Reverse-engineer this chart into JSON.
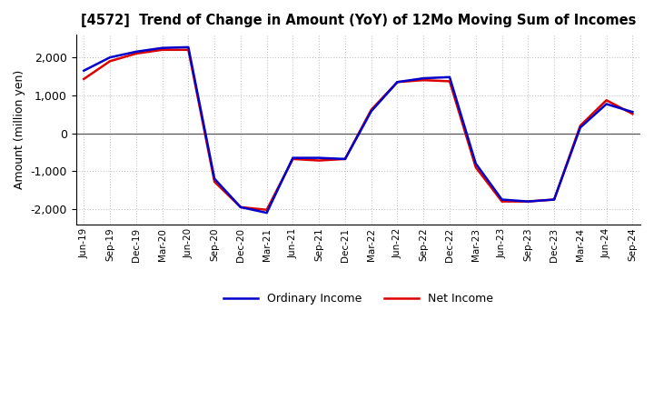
{
  "title": "[4572]  Trend of Change in Amount (YoY) of 12Mo Moving Sum of Incomes",
  "ylabel": "Amount (million yen)",
  "background_color": "#ffffff",
  "grid_color": "#bbbbbb",
  "x_labels": [
    "Jun-19",
    "Sep-19",
    "Dec-19",
    "Mar-20",
    "Jun-20",
    "Sep-20",
    "Dec-20",
    "Mar-21",
    "Jun-21",
    "Sep-21",
    "Dec-21",
    "Mar-22",
    "Jun-22",
    "Sep-22",
    "Dec-22",
    "Mar-23",
    "Jun-23",
    "Sep-23",
    "Dec-23",
    "Mar-24",
    "Jun-24",
    "Sep-24"
  ],
  "ordinary_income": [
    1650,
    2000,
    2150,
    2250,
    2270,
    -1200,
    -1950,
    -2100,
    -650,
    -650,
    -680,
    580,
    1350,
    1450,
    1480,
    -800,
    -1750,
    -1800,
    -1750,
    150,
    770,
    560
  ],
  "net_income": [
    1430,
    1900,
    2100,
    2200,
    2200,
    -1280,
    -1950,
    -2020,
    -680,
    -720,
    -680,
    620,
    1350,
    1400,
    1370,
    -900,
    -1800,
    -1800,
    -1750,
    200,
    870,
    510
  ],
  "ordinary_color": "#0000cc",
  "net_color": "#dd0000",
  "ylim": [
    -2400,
    2600
  ],
  "yticks": [
    -2000,
    -1000,
    0,
    1000,
    2000
  ],
  "legend_labels": [
    "Ordinary Income",
    "Net Income"
  ],
  "line_width": 1.8
}
